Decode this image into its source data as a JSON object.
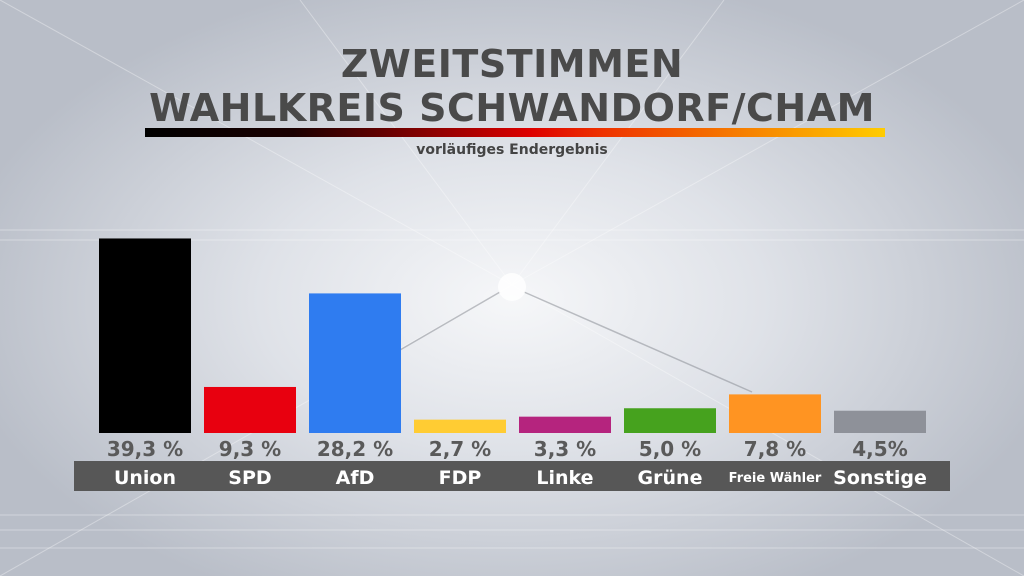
{
  "header": {
    "title_line1": "ZWEITSTIMMEN",
    "title_line2": "WAHLKREIS SCHWANDORF/CHAM",
    "subtitle": "vorläufiges Endergebnis"
  },
  "colors": {
    "background": "#dfe2e8",
    "title_text": "#4a4a4a",
    "value_text": "#5a5a5a",
    "label_band": "#575757",
    "label_text": "#ffffff"
  },
  "chart_data": {
    "type": "bar",
    "title": "ZWEITSTIMMEN WAHLKREIS SCHWANDORF/CHAM",
    "subtitle": "vorläufiges Endergebnis",
    "categories": [
      "Union",
      "SPD",
      "AfD",
      "FDP",
      "Linke",
      "Grüne",
      "Freie Wähler",
      "Sonstige"
    ],
    "values": [
      39.3,
      9.3,
      28.2,
      2.7,
      3.3,
      5.0,
      7.8,
      4.5
    ],
    "value_labels": [
      "39,3 %",
      "9,3 %",
      "28,2 %",
      "2,7 %",
      "3,3 %",
      "5,0 %",
      "7,8 %",
      "4,5%"
    ],
    "colors": [
      "#000000",
      "#e8000f",
      "#2f7cf0",
      "#ffcc33",
      "#b5247e",
      "#46a21e",
      "#ff9422",
      "#8e9199"
    ],
    "unit": "%",
    "ylim": [
      0,
      40
    ],
    "grid": false,
    "legend": "none"
  }
}
